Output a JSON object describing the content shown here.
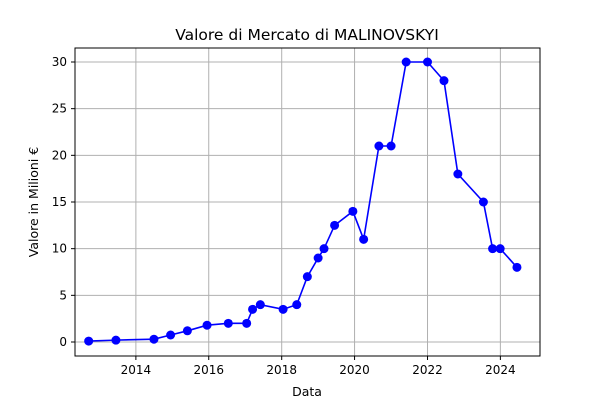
{
  "chart_data": {
    "type": "line",
    "title": "Valore di Mercato di MALINOVSKYI",
    "xlabel": "Data",
    "ylabel": "Valore in Milioni €",
    "x_tick_labels": [
      "2014",
      "2016",
      "2018",
      "2020",
      "2022",
      "2024"
    ],
    "y_tick_labels": [
      "0",
      "5",
      "10",
      "15",
      "20",
      "25",
      "30"
    ],
    "xlim": [
      "2012-05-01",
      "2025-02-01"
    ],
    "ylim": [
      -1.5,
      31.5
    ],
    "grid": true,
    "series": [
      {
        "color": "#0000ff",
        "marker": "circle",
        "points": [
          {
            "x": "2012-09-15",
            "y": 0.1
          },
          {
            "x": "2013-06-15",
            "y": 0.2
          },
          {
            "x": "2014-07-01",
            "y": 0.3
          },
          {
            "x": "2014-12-15",
            "y": 0.75
          },
          {
            "x": "2015-06-01",
            "y": 1.2
          },
          {
            "x": "2015-12-15",
            "y": 1.8
          },
          {
            "x": "2016-07-15",
            "y": 2.0
          },
          {
            "x": "2017-01-15",
            "y": 2.0
          },
          {
            "x": "2017-03-15",
            "y": 3.5
          },
          {
            "x": "2017-06-01",
            "y": 4.0
          },
          {
            "x": "2018-01-15",
            "y": 3.5
          },
          {
            "x": "2018-06-01",
            "y": 4.0
          },
          {
            "x": "2018-09-15",
            "y": 7.0
          },
          {
            "x": "2019-01-01",
            "y": 9.0
          },
          {
            "x": "2019-03-01",
            "y": 10.0
          },
          {
            "x": "2019-06-15",
            "y": 12.5
          },
          {
            "x": "2019-12-15",
            "y": 14.0
          },
          {
            "x": "2020-04-01",
            "y": 11.0
          },
          {
            "x": "2020-09-01",
            "y": 21.0
          },
          {
            "x": "2021-01-01",
            "y": 21.0
          },
          {
            "x": "2021-06-01",
            "y": 30.0
          },
          {
            "x": "2022-01-01",
            "y": 30.0
          },
          {
            "x": "2022-06-15",
            "y": 28.0
          },
          {
            "x": "2022-11-01",
            "y": 18.0
          },
          {
            "x": "2023-07-15",
            "y": 15.0
          },
          {
            "x": "2023-10-15",
            "y": 10.0
          },
          {
            "x": "2023-12-30",
            "y": 10.0
          },
          {
            "x": "2024-06-15",
            "y": 8.0
          }
        ]
      }
    ]
  }
}
